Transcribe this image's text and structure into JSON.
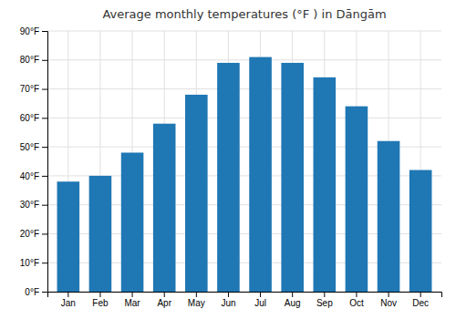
{
  "chart_data": {
    "type": "bar",
    "title": "Average monthly temperatures (°F ) in Dāngām",
    "categories": [
      "Jan",
      "Feb",
      "Mar",
      "Apr",
      "May",
      "Jun",
      "Jul",
      "Aug",
      "Sep",
      "Oct",
      "Nov",
      "Dec"
    ],
    "values": [
      38,
      40,
      48,
      58,
      68,
      79,
      81,
      79,
      74,
      64,
      52,
      42
    ],
    "ylim": [
      0,
      90
    ],
    "yticks": [
      {
        "value": 0,
        "label": "0°F"
      },
      {
        "value": 10,
        "label": "10°F"
      },
      {
        "value": 20,
        "label": "20°F"
      },
      {
        "value": 30,
        "label": "30°F"
      },
      {
        "value": 40,
        "label": "40°F"
      },
      {
        "value": 50,
        "label": "50°F"
      },
      {
        "value": 60,
        "label": "60°F"
      },
      {
        "value": 70,
        "label": "70°F"
      },
      {
        "value": 80,
        "label": "80°F"
      },
      {
        "value": 90,
        "label": "90°F"
      }
    ],
    "grid": true
  }
}
